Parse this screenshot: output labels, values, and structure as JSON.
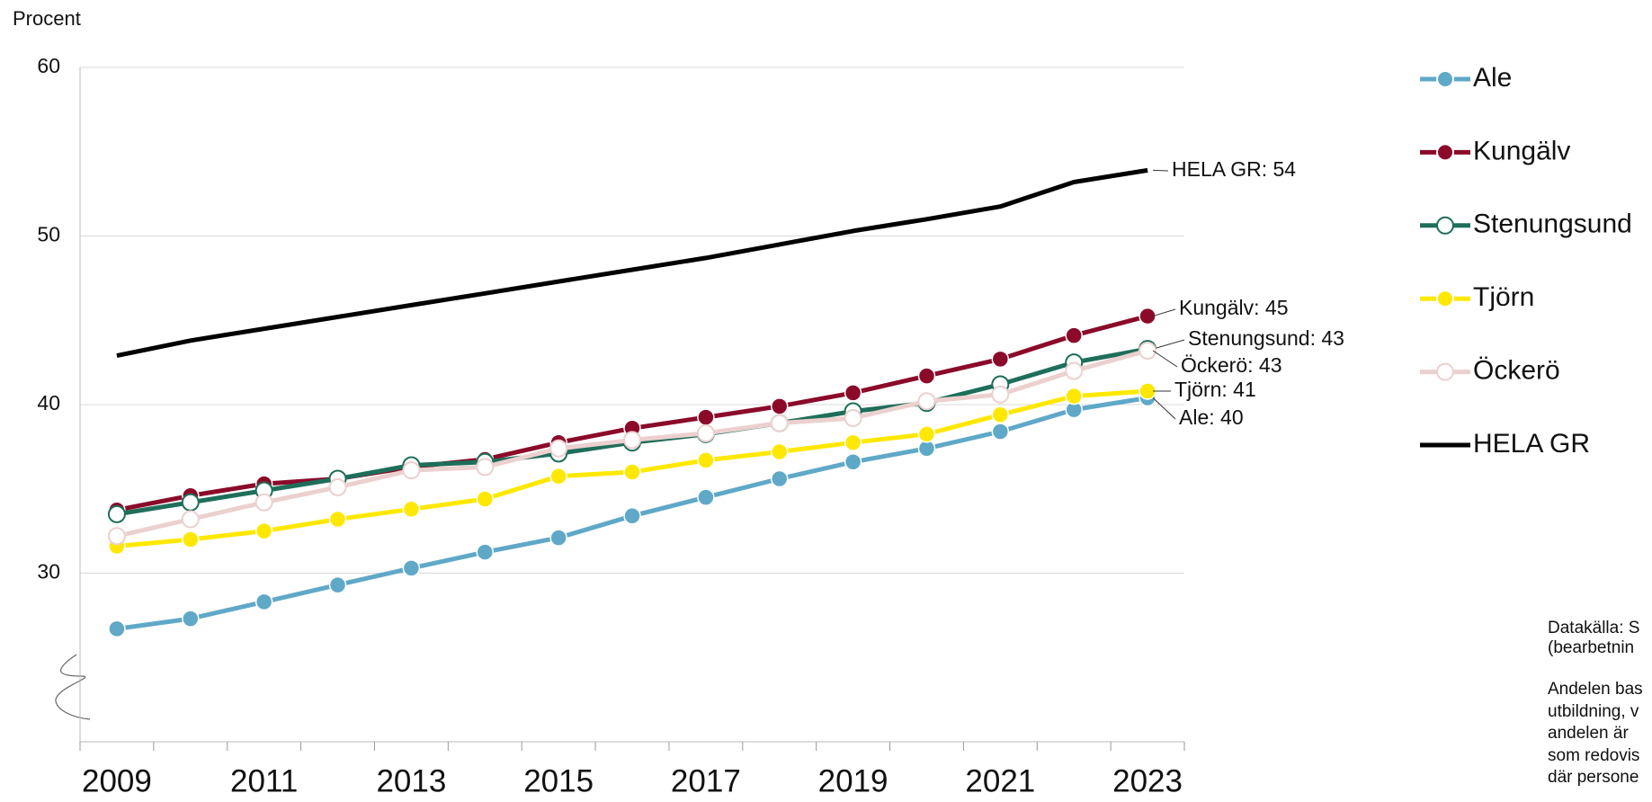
{
  "chart_data": {
    "type": "line",
    "y_label": "Procent",
    "categories": [
      "2009",
      null,
      "2011",
      null,
      "2013",
      null,
      "2015",
      null,
      "2017",
      null,
      "2019",
      null,
      "2021",
      null,
      "2023"
    ],
    "ylim": [
      20,
      60
    ],
    "yticks": [
      30,
      40,
      50,
      60
    ],
    "grid": true,
    "legend": "right",
    "series": [
      {
        "name": "Ale",
        "color": "#5fa8c8",
        "marker": "filled",
        "end_label": "Ale: 40",
        "values": [
          26.7,
          27.3,
          28.3,
          29.3,
          30.3,
          31.25,
          32.1,
          33.4,
          34.5,
          35.6,
          36.6,
          37.4,
          38.4,
          39.7,
          40.4
        ]
      },
      {
        "name": "Kungälv",
        "color": "#8b0a2a",
        "marker": "filled",
        "end_label": "Kungälv: 45",
        "values": [
          33.75,
          34.6,
          35.3,
          35.6,
          36.3,
          36.75,
          37.75,
          38.6,
          39.25,
          39.9,
          40.7,
          41.7,
          42.7,
          44.1,
          45.25
        ]
      },
      {
        "name": "Stenungsund",
        "color": "#1e6e5a",
        "marker": "hollow",
        "end_label": "Stenungsund: 43",
        "values": [
          33.5,
          34.2,
          34.9,
          35.6,
          36.4,
          36.6,
          37.1,
          37.75,
          38.25,
          38.9,
          39.6,
          40.1,
          41.2,
          42.5,
          43.3
        ]
      },
      {
        "name": "Tjörn",
        "color": "#ffe800",
        "marker": "filled",
        "end_label": "Tjörn: 41",
        "values": [
          31.6,
          32.0,
          32.5,
          33.2,
          33.8,
          34.4,
          35.75,
          36.0,
          36.7,
          37.2,
          37.75,
          38.25,
          39.4,
          40.5,
          40.8
        ]
      },
      {
        "name": "Öckerö",
        "color": "#ecd0d0",
        "marker": "hollow",
        "end_label": "Öckerö: 43",
        "values": [
          32.2,
          33.2,
          34.2,
          35.1,
          36.1,
          36.3,
          37.4,
          37.9,
          38.3,
          38.9,
          39.2,
          40.2,
          40.6,
          42.0,
          43.2
        ]
      },
      {
        "name": "HELA GR",
        "color": "#000000",
        "marker": "none",
        "end_label": "HELA GR: 54",
        "values": [
          42.9,
          43.8,
          44.5,
          45.2,
          45.9,
          46.6,
          47.3,
          48.0,
          48.7,
          49.5,
          50.3,
          51.0,
          51.75,
          53.2,
          53.9
        ]
      }
    ],
    "notes": [
      "Datakälla: S",
      "(bearbetnin",
      "Andelen bas",
      "utbildning, v",
      "andelen är",
      "som redovis",
      "där persone"
    ]
  }
}
